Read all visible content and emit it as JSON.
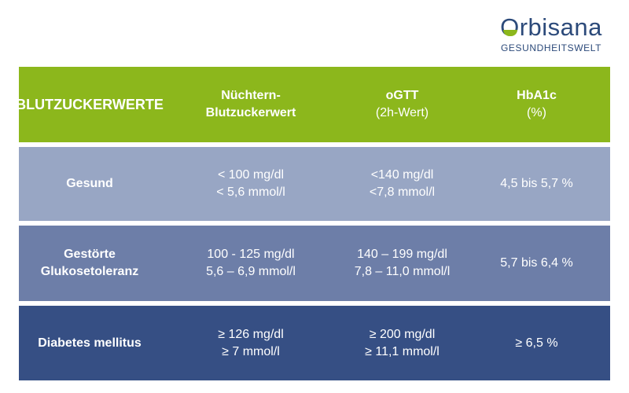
{
  "logo": {
    "first_letter": "O",
    "rest": "rbisana",
    "subtitle": "GESUNDHEITSWELT"
  },
  "header": {
    "col0": "BLUTZUCKERWERTE",
    "col1_line1": "Nüchtern-",
    "col1_line2": "Blutzuckerwert",
    "col2_line1": "oGTT",
    "col2_line2": "(2h-Wert)",
    "col3_line1": "HbA1c",
    "col3_line2": "(%)"
  },
  "rows": [
    {
      "label_line1": "Gesund",
      "label_line2": "",
      "fasting_line1": "< 100 mg/dl",
      "fasting_line2": "< 5,6 mmol/l",
      "ogtt_line1": "<140 mg/dl",
      "ogtt_line2": "<7,8 mmol/l",
      "hba1c": "4,5 bis 5,7 %"
    },
    {
      "label_line1": "Gestörte",
      "label_line2": "Glukosetoleranz",
      "fasting_line1": "100 - 125 mg/dl",
      "fasting_line2": "5,6 – 6,9 mmol/l",
      "ogtt_line1": "140 – 199 mg/dl",
      "ogtt_line2": "7,8 – 11,0 mmol/l",
      "hba1c": "5,7 bis 6,4 %"
    },
    {
      "label_line1": "Diabetes mellitus",
      "label_line2": "",
      "fasting_line1": "≥ 126 mg/dl",
      "fasting_line2": "≥ 7 mmol/l",
      "ogtt_line1": "≥ 200 mg/dl",
      "ogtt_line2": "≥ 11,1 mmol/l",
      "hba1c": "≥ 6,5 %"
    }
  ],
  "colors": {
    "header_bg": "#8cb71c",
    "row1_bg": "#98a6c4",
    "row2_bg": "#6d7ea8",
    "row3_bg": "#364f84",
    "logo_blue": "#2c4a7a",
    "logo_green": "#8cb71c"
  }
}
